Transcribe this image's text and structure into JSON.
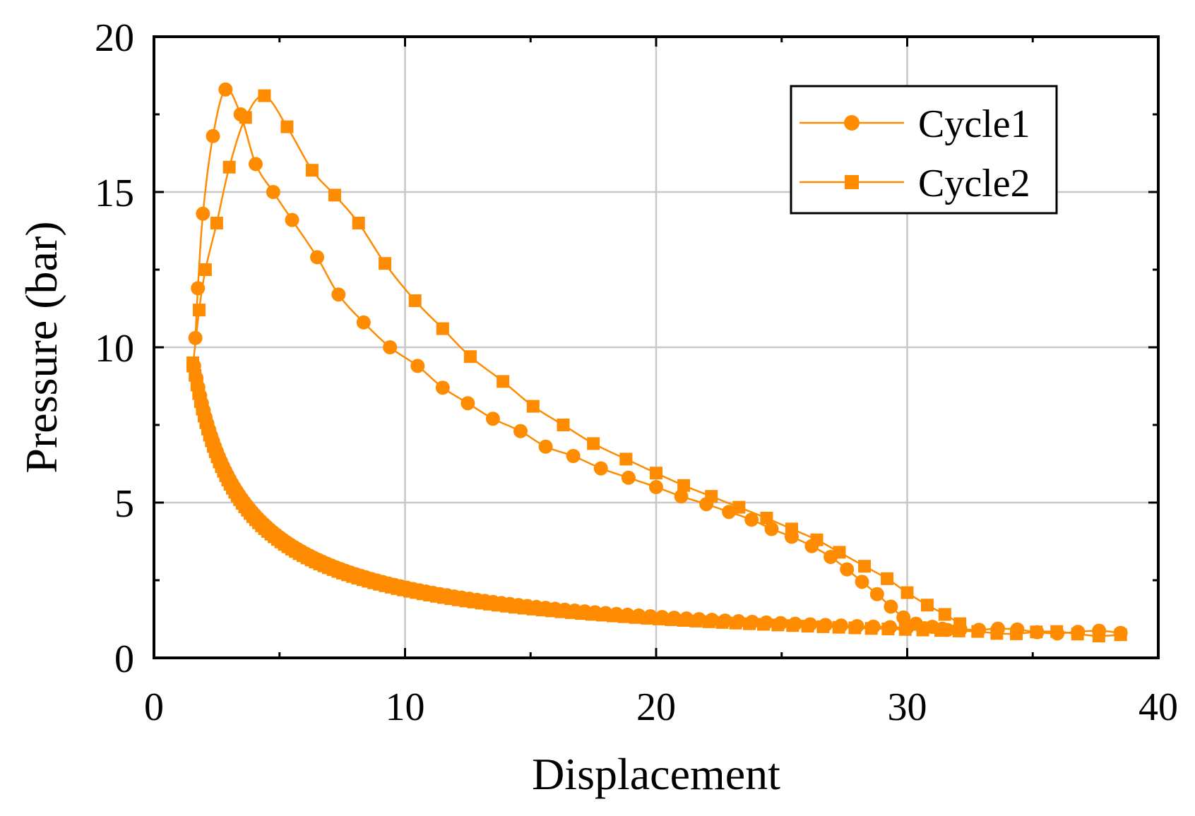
{
  "chart_data": {
    "type": "line",
    "xlabel": "Displacement",
    "ylabel": "Pressure (bar)",
    "xlim": [
      0,
      40
    ],
    "ylim": [
      0,
      20
    ],
    "xticks": [
      0,
      10,
      20,
      30,
      40
    ],
    "yticks": [
      0,
      5,
      10,
      15,
      20
    ],
    "grid": true,
    "legend_position": "top-right",
    "marker_color": "#ff8c00",
    "series": [
      {
        "name": "Cycle1",
        "marker": "circle",
        "compression": [
          [
            1.65,
            10.3
          ],
          [
            1.75,
            11.9
          ],
          [
            1.95,
            14.3
          ],
          [
            2.35,
            16.8
          ],
          [
            2.85,
            18.3
          ],
          [
            3.45,
            17.5
          ],
          [
            4.05,
            15.9
          ],
          [
            4.75,
            15.0
          ],
          [
            5.5,
            14.1
          ],
          [
            6.5,
            12.9
          ],
          [
            7.35,
            11.7
          ],
          [
            8.35,
            10.8
          ],
          [
            9.4,
            10.0
          ],
          [
            10.5,
            9.4
          ],
          [
            11.5,
            8.7
          ],
          [
            12.5,
            8.2
          ],
          [
            13.5,
            7.7
          ],
          [
            14.6,
            7.3
          ],
          [
            15.6,
            6.8
          ],
          [
            16.7,
            6.5
          ],
          [
            17.8,
            6.1
          ],
          [
            18.9,
            5.8
          ],
          [
            20.0,
            5.5
          ],
          [
            21.0,
            5.2
          ],
          [
            22.0,
            4.95
          ],
          [
            22.9,
            4.7
          ],
          [
            23.8,
            4.45
          ],
          [
            24.6,
            4.15
          ],
          [
            25.4,
            3.9
          ],
          [
            26.2,
            3.6
          ],
          [
            26.95,
            3.25
          ],
          [
            27.6,
            2.85
          ],
          [
            28.2,
            2.45
          ],
          [
            28.8,
            2.05
          ],
          [
            29.35,
            1.65
          ],
          [
            29.85,
            1.3
          ],
          [
            30.35,
            1.1
          ],
          [
            31.0,
            1.0
          ],
          [
            31.6,
            0.9
          ]
        ],
        "expansion_start": [
          1.6,
          9.4
        ],
        "expansion_end": [
          38.5,
          0.8
        ]
      },
      {
        "name": "Cycle2",
        "marker": "square",
        "compression": [
          [
            1.55,
            9.4
          ],
          [
            1.8,
            11.2
          ],
          [
            2.05,
            12.5
          ],
          [
            2.5,
            14.0
          ],
          [
            3.0,
            15.8
          ],
          [
            3.65,
            17.4
          ],
          [
            4.4,
            18.1
          ],
          [
            5.3,
            17.1
          ],
          [
            6.3,
            15.7
          ],
          [
            7.2,
            14.9
          ],
          [
            8.15,
            14.0
          ],
          [
            9.2,
            12.7
          ],
          [
            10.4,
            11.5
          ],
          [
            11.5,
            10.6
          ],
          [
            12.6,
            9.7
          ],
          [
            13.9,
            8.9
          ],
          [
            15.1,
            8.1
          ],
          [
            16.3,
            7.5
          ],
          [
            17.5,
            6.9
          ],
          [
            18.8,
            6.4
          ],
          [
            20.0,
            5.95
          ],
          [
            21.1,
            5.55
          ],
          [
            22.2,
            5.2
          ],
          [
            23.3,
            4.85
          ],
          [
            24.4,
            4.5
          ],
          [
            25.4,
            4.15
          ],
          [
            26.4,
            3.8
          ],
          [
            27.3,
            3.4
          ],
          [
            28.3,
            2.95
          ],
          [
            29.2,
            2.55
          ],
          [
            30.0,
            2.1
          ],
          [
            30.8,
            1.7
          ],
          [
            31.5,
            1.4
          ],
          [
            32.1,
            1.1
          ]
        ],
        "expansion_start": [
          1.55,
          9.5
        ],
        "expansion_end": [
          38.5,
          0.75
        ]
      }
    ]
  }
}
